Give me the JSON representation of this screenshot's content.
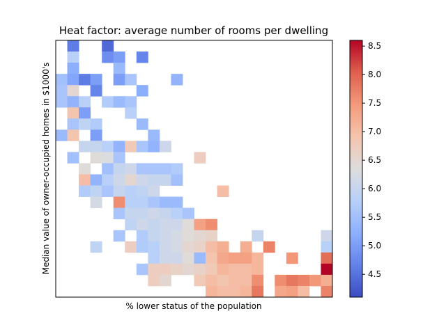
{
  "chart_data": {
    "type": "heatmap",
    "title": "Heat factor: average number of rooms per dwelling",
    "xlabel": "% lower status of the population",
    "ylabel": "Median value of owner-occupied homes in $1000's",
    "x_ticks_shown": false,
    "y_ticks_shown": false,
    "colormap": "coolwarm",
    "colorbar": {
      "min": 4.1,
      "max": 8.6,
      "ticks": [
        "4.5",
        "5.0",
        "5.5",
        "6.0",
        "6.5",
        "7.0",
        "7.5",
        "8.0",
        "8.5"
      ]
    },
    "grid_columns": 24,
    "grid_rows": 23,
    "cells": [
      [
        1,
        0,
        4.6
      ],
      [
        4,
        0,
        4.4
      ],
      [
        1,
        1,
        5.8
      ],
      [
        4,
        1,
        4.8
      ],
      [
        5,
        1,
        5.0
      ],
      [
        7,
        1,
        4.7
      ],
      [
        1,
        2,
        5.2
      ],
      [
        5,
        2,
        5.4
      ],
      [
        0,
        3,
        5.5
      ],
      [
        1,
        3,
        5.1
      ],
      [
        2,
        3,
        4.6
      ],
      [
        3,
        3,
        5.0
      ],
      [
        5,
        3,
        5.0
      ],
      [
        6,
        3,
        5.6
      ],
      [
        10,
        3,
        5.3
      ],
      [
        0,
        4,
        5.6
      ],
      [
        1,
        4,
        6.5
      ],
      [
        3,
        4,
        4.7
      ],
      [
        7,
        4,
        5.2
      ],
      [
        0,
        5,
        5.6
      ],
      [
        1,
        5,
        5.3
      ],
      [
        2,
        5,
        5.8
      ],
      [
        4,
        5,
        5.7
      ],
      [
        5,
        5,
        5.4
      ],
      [
        6,
        5,
        5.6
      ],
      [
        1,
        6,
        6.9
      ],
      [
        2,
        6,
        5.0
      ],
      [
        6,
        6,
        5.8
      ],
      [
        1,
        7,
        5.6
      ],
      [
        2,
        7,
        5.9
      ],
      [
        3,
        7,
        5.7
      ],
      [
        7,
        7,
        5.4
      ],
      [
        0,
        8,
        5.4
      ],
      [
        1,
        8,
        6.9
      ],
      [
        3,
        8,
        5.0
      ],
      [
        8,
        8,
        5.4
      ],
      [
        2,
        9,
        6.0
      ],
      [
        3,
        9,
        6.0
      ],
      [
        4,
        9,
        5.8
      ],
      [
        5,
        9,
        5.3
      ],
      [
        6,
        9,
        6.8
      ],
      [
        7,
        9,
        5.6
      ],
      [
        8,
        9,
        5.3
      ],
      [
        9,
        9,
        6.1
      ],
      [
        1,
        10,
        5.5
      ],
      [
        3,
        10,
        6.4
      ],
      [
        4,
        10,
        6.3
      ],
      [
        5,
        10,
        5.6
      ],
      [
        12,
        10,
        6.7
      ],
      [
        2,
        11,
        6.4
      ],
      [
        4,
        11,
        5.5
      ],
      [
        5,
        11,
        6.0
      ],
      [
        6,
        11,
        6.1
      ],
      [
        7,
        11,
        5.6
      ],
      [
        8,
        11,
        5.6
      ],
      [
        9,
        11,
        5.6
      ],
      [
        10,
        11,
        5.7
      ],
      [
        2,
        12,
        7.0
      ],
      [
        3,
        12,
        5.3
      ],
      [
        4,
        12,
        5.8
      ],
      [
        5,
        12,
        6.1
      ],
      [
        6,
        12,
        6.5
      ],
      [
        7,
        12,
        6.1
      ],
      [
        8,
        12,
        6.0
      ],
      [
        9,
        12,
        6.0
      ],
      [
        10,
        12,
        5.5
      ],
      [
        2,
        13,
        5.7
      ],
      [
        3,
        13,
        5.9
      ],
      [
        4,
        13,
        5.6
      ],
      [
        5,
        13,
        6.0
      ],
      [
        6,
        13,
        5.8
      ],
      [
        7,
        13,
        5.9
      ],
      [
        8,
        13,
        6.1
      ],
      [
        14,
        13,
        7.0
      ],
      [
        3,
        14,
        6.2
      ],
      [
        5,
        14,
        7.6
      ],
      [
        6,
        14,
        5.8
      ],
      [
        7,
        14,
        5.8
      ],
      [
        8,
        14,
        5.6
      ],
      [
        9,
        14,
        5.4
      ],
      [
        10,
        14,
        5.4
      ],
      [
        5,
        15,
        5.6
      ],
      [
        6,
        15,
        6.0
      ],
      [
        7,
        15,
        6.0
      ],
      [
        8,
        15,
        6.1
      ],
      [
        9,
        15,
        6.0
      ],
      [
        10,
        15,
        5.8
      ],
      [
        11,
        15,
        5.6
      ],
      [
        6,
        16,
        5.9
      ],
      [
        7,
        16,
        6.1
      ],
      [
        8,
        16,
        6.0
      ],
      [
        9,
        16,
        6.1
      ],
      [
        10,
        16,
        6.1
      ],
      [
        11,
        16,
        6.4
      ],
      [
        12,
        16,
        7.4
      ],
      [
        13,
        16,
        7.6
      ],
      [
        5,
        17,
        5.6
      ],
      [
        7,
        17,
        5.7
      ],
      [
        8,
        17,
        6.0
      ],
      [
        9,
        17,
        6.1
      ],
      [
        10,
        17,
        6.2
      ],
      [
        11,
        17,
        6.4
      ],
      [
        12,
        17,
        6.5
      ],
      [
        13,
        17,
        6.6
      ],
      [
        17,
        17,
        6.0
      ],
      [
        23,
        17,
        6.1
      ],
      [
        3,
        18,
        5.9
      ],
      [
        6,
        18,
        6.7
      ],
      [
        7,
        18,
        5.7
      ],
      [
        8,
        18,
        5.8
      ],
      [
        9,
        18,
        6.1
      ],
      [
        10,
        18,
        6.2
      ],
      [
        11,
        18,
        6.5
      ],
      [
        12,
        18,
        6.6
      ],
      [
        13,
        18,
        7.0
      ],
      [
        14,
        18,
        7.2
      ],
      [
        16,
        18,
        7.2
      ],
      [
        18,
        18,
        7.7
      ],
      [
        23,
        18,
        5.8
      ],
      [
        8,
        19,
        5.8
      ],
      [
        9,
        19,
        6.1
      ],
      [
        10,
        19,
        6.1
      ],
      [
        11,
        19,
        6.4
      ],
      [
        12,
        19,
        5.4
      ],
      [
        13,
        19,
        6.9
      ],
      [
        14,
        19,
        7.3
      ],
      [
        15,
        19,
        7.4
      ],
      [
        16,
        19,
        7.4
      ],
      [
        17,
        19,
        7.1
      ],
      [
        20,
        19,
        7.5
      ],
      [
        23,
        19,
        7.9
      ],
      [
        7,
        20,
        5.6
      ],
      [
        8,
        20,
        6.7
      ],
      [
        9,
        20,
        6.7
      ],
      [
        10,
        20,
        6.6
      ],
      [
        11,
        20,
        6.5
      ],
      [
        12,
        20,
        6.6
      ],
      [
        13,
        20,
        6.8
      ],
      [
        14,
        20,
        7.1
      ],
      [
        15,
        20,
        7.0
      ],
      [
        16,
        20,
        7.0
      ],
      [
        17,
        20,
        7.1
      ],
      [
        23,
        20,
        8.6
      ],
      [
        8,
        21,
        6.7
      ],
      [
        9,
        21,
        6.5
      ],
      [
        12,
        21,
        6.8
      ],
      [
        13,
        21,
        7.0
      ],
      [
        14,
        21,
        6.9
      ],
      [
        15,
        21,
        7.0
      ],
      [
        16,
        21,
        7.0
      ],
      [
        17,
        21,
        7.6
      ],
      [
        19,
        21,
        7.6
      ],
      [
        20,
        21,
        7.8
      ],
      [
        21,
        21,
        7.7
      ],
      [
        22,
        21,
        7.5
      ],
      [
        23,
        21,
        7.2
      ],
      [
        13,
        22,
        7.1
      ],
      [
        14,
        22,
        7.0
      ],
      [
        15,
        22,
        7.0
      ],
      [
        16,
        22,
        7.1
      ],
      [
        17,
        22,
        7.8
      ],
      [
        19,
        22,
        7.3
      ],
      [
        20,
        22,
        7.4
      ],
      [
        21,
        22,
        7.0
      ],
      [
        23,
        22,
        7.7
      ]
    ]
  }
}
